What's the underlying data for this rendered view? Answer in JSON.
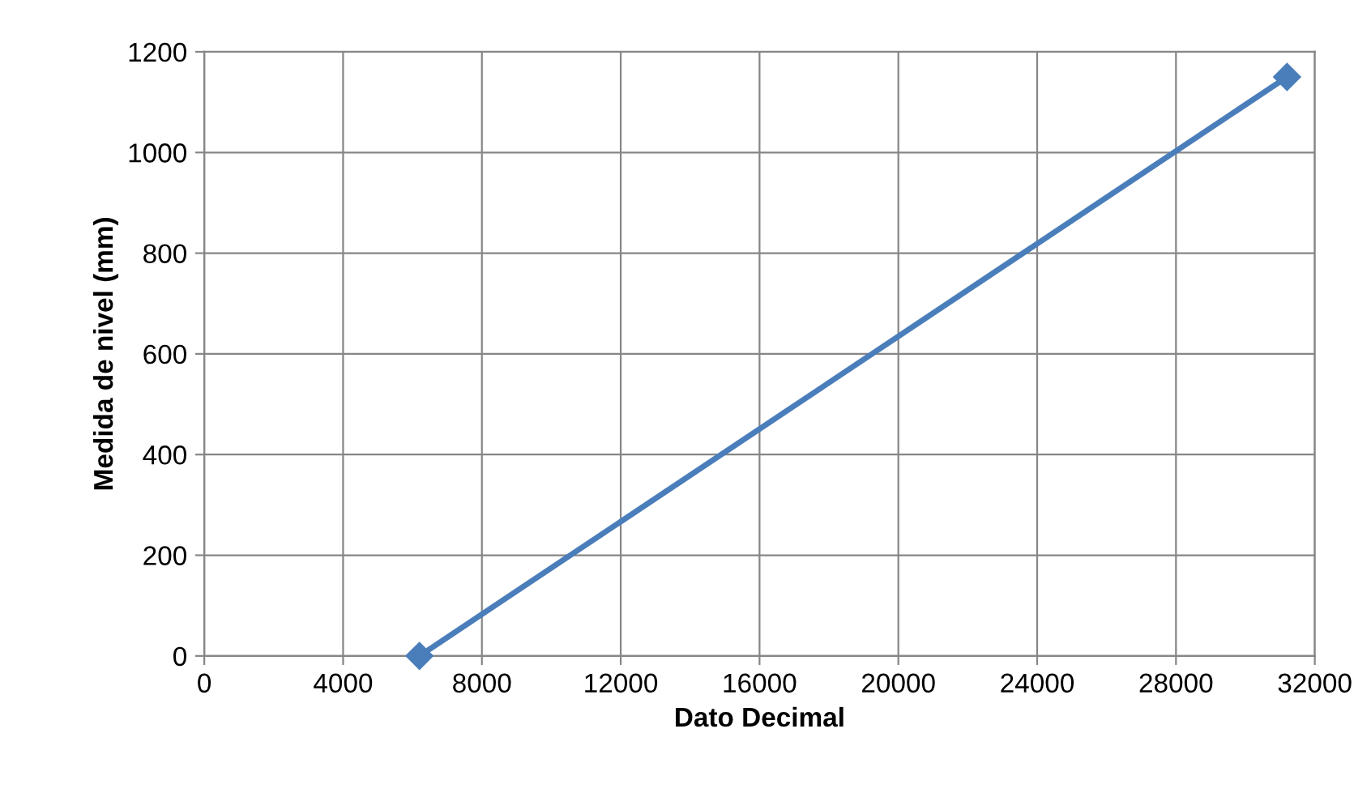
{
  "chart_data": {
    "type": "line",
    "xlabel": "Dato Decimal",
    "ylabel": "Medida de nivel (mm)",
    "x": [
      6200,
      31200
    ],
    "series": [
      {
        "color": "#4a7ebb",
        "values": [
          0,
          1150
        ]
      }
    ],
    "xlim": [
      0,
      32000
    ],
    "xticks": [
      0,
      4000,
      8000,
      12000,
      16000,
      20000,
      24000,
      28000,
      32000
    ],
    "ylim": [
      0,
      1200
    ],
    "yticks": [
      0,
      200,
      400,
      600,
      800,
      1000,
      1200
    ],
    "grid": true,
    "marker": "diamond",
    "line_style": "solid",
    "legend": false
  }
}
